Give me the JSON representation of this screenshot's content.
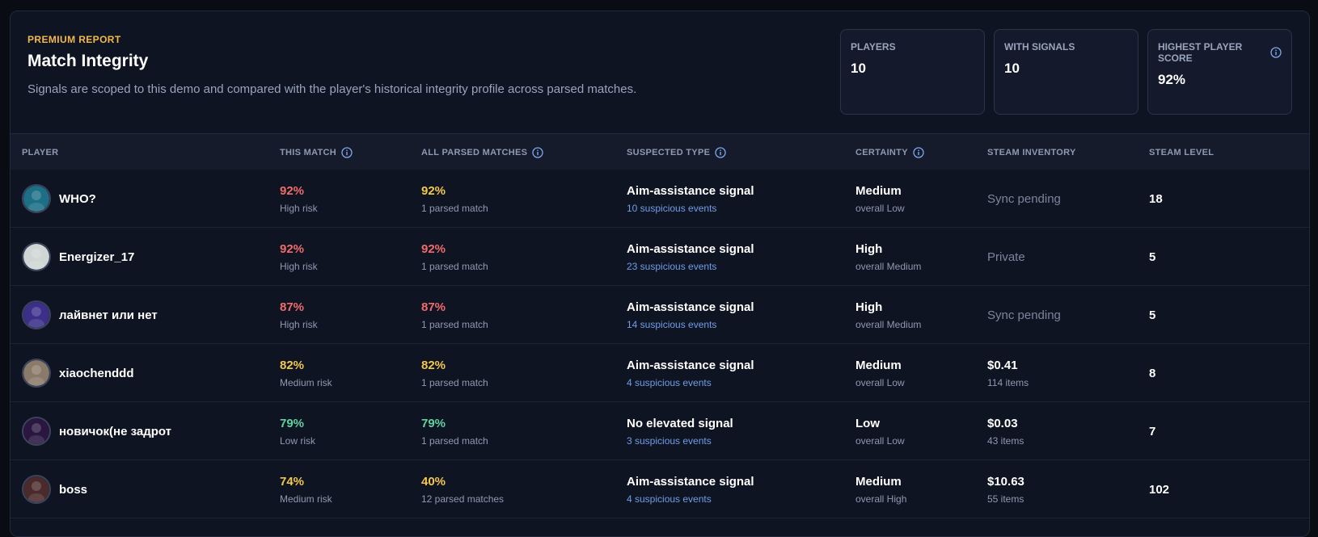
{
  "header": {
    "eyebrow": "PREMIUM REPORT",
    "title": "Match Integrity",
    "subtitle": "Signals are scoped to this demo and compared with the player's historical integrity profile across parsed matches."
  },
  "stats": [
    {
      "label": "PLAYERS",
      "value": "10"
    },
    {
      "label": "WITH SIGNALS",
      "value": "10"
    },
    {
      "label": "HIGHEST PLAYER SCORE",
      "value": "92%"
    }
  ],
  "columns": {
    "player": "PLAYER",
    "this_match": "THIS MATCH",
    "all_parsed": "ALL PARSED MATCHES",
    "suspected_type": "SUSPECTED TYPE",
    "certainty": "CERTAINTY",
    "steam_inventory": "STEAM INVENTORY",
    "steam_level": "STEAM LEVEL"
  },
  "colors": {
    "high": "#f26b6b",
    "medium": "#f3c84a",
    "low": "#5fd3a0"
  },
  "rows": [
    {
      "name": "WHO?",
      "avatar_color": "#1d6f86",
      "this_pct": "92%",
      "this_risk": "High risk",
      "this_level": "high",
      "all_pct": "92%",
      "all_level": "medium",
      "all_sub": "1 parsed match",
      "type": "Aim-assistance signal",
      "events": "10 suspicious events",
      "certainty": "Medium",
      "overall": "overall Low",
      "inventory": "Sync pending",
      "inventory_items": "",
      "inventory_muted": true,
      "steam_level": "18"
    },
    {
      "name": "Energizer_17",
      "avatar_color": "#cfd6d3",
      "this_pct": "92%",
      "this_risk": "High risk",
      "this_level": "high",
      "all_pct": "92%",
      "all_level": "high",
      "all_sub": "1 parsed match",
      "type": "Aim-assistance signal",
      "events": "23 suspicious events",
      "certainty": "High",
      "overall": "overall Medium",
      "inventory": "Private",
      "inventory_items": "",
      "inventory_muted": true,
      "steam_level": "5"
    },
    {
      "name": "лайвнет или нет",
      "avatar_color": "#3b2f8a",
      "this_pct": "87%",
      "this_risk": "High risk",
      "this_level": "high",
      "all_pct": "87%",
      "all_level": "high",
      "all_sub": "1 parsed match",
      "type": "Aim-assistance signal",
      "events": "14 suspicious events",
      "certainty": "High",
      "overall": "overall Medium",
      "inventory": "Sync pending",
      "inventory_items": "",
      "inventory_muted": true,
      "steam_level": "5"
    },
    {
      "name": "xiaochenddd",
      "avatar_color": "#8a7a6a",
      "this_pct": "82%",
      "this_risk": "Medium risk",
      "this_level": "medium",
      "all_pct": "82%",
      "all_level": "medium",
      "all_sub": "1 parsed match",
      "type": "Aim-assistance signal",
      "events": "4 suspicious events",
      "certainty": "Medium",
      "overall": "overall Low",
      "inventory": "$0.41",
      "inventory_items": "114 items",
      "inventory_muted": false,
      "steam_level": "8"
    },
    {
      "name": "новичок(не задрот",
      "avatar_color": "#2a1640",
      "this_pct": "79%",
      "this_risk": "Low risk",
      "this_level": "low",
      "all_pct": "79%",
      "all_level": "low",
      "all_sub": "1 parsed match",
      "type": "No elevated signal",
      "events": "3 suspicious events",
      "certainty": "Low",
      "overall": "overall Low",
      "inventory": "$0.03",
      "inventory_items": "43 items",
      "inventory_muted": false,
      "steam_level": "7"
    },
    {
      "name": "boss",
      "avatar_color": "#4a2a2a",
      "this_pct": "74%",
      "this_risk": "Medium risk",
      "this_level": "medium",
      "all_pct": "40%",
      "all_level": "medium",
      "all_sub": "12 parsed matches",
      "type": "Aim-assistance signal",
      "events": "4 suspicious events",
      "certainty": "Medium",
      "overall": "overall High",
      "inventory": "$10.63",
      "inventory_items": "55 items",
      "inventory_muted": false,
      "steam_level": "102"
    }
  ]
}
